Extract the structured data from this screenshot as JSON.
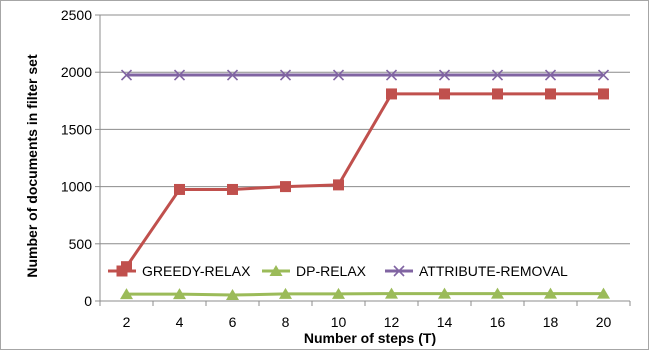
{
  "chart_data": {
    "type": "line",
    "title": "",
    "xlabel": "Number of steps (T)",
    "ylabel": "Number of documents in filter set",
    "x": [
      2,
      4,
      6,
      8,
      10,
      12,
      14,
      16,
      18,
      20
    ],
    "x_tick_labels": [
      "2",
      "4",
      "6",
      "8",
      "10",
      "12",
      "14",
      "16",
      "18",
      "20"
    ],
    "ylim": [
      0,
      2500
    ],
    "y_ticks": [
      0,
      500,
      1000,
      1500,
      2000,
      2500
    ],
    "y_tick_labels": [
      "0",
      "500",
      "1000",
      "1500",
      "2000",
      "2500"
    ],
    "grid": "horizontal",
    "legend_position": "bottom-inside",
    "series": [
      {
        "name": "GREEDY-RELAX",
        "color": "#c0504d",
        "marker": "square",
        "values": [
          300,
          975,
          975,
          1000,
          1015,
          1810,
          1810,
          1810,
          1810,
          1810
        ]
      },
      {
        "name": "DP-RELAX",
        "color": "#9bbb59",
        "marker": "triangle",
        "values": [
          60,
          60,
          52,
          62,
          62,
          65,
          65,
          65,
          65,
          65
        ]
      },
      {
        "name": "ATTRIBUTE-REMOVAL",
        "color": "#8064a2",
        "marker": "x",
        "values": [
          1975,
          1975,
          1975,
          1975,
          1975,
          1975,
          1975,
          1975,
          1975,
          1975
        ]
      }
    ]
  }
}
